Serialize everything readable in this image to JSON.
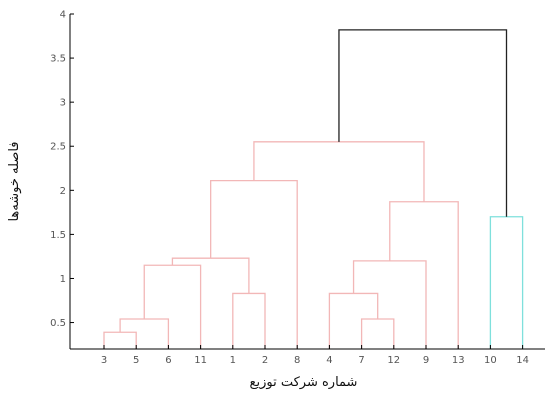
{
  "chart_data": {
    "type": "dendrogram",
    "title": "",
    "xlabel": "شماره شرکت توزیع",
    "ylabel": "فاصله خوشه‌ها",
    "ylim": [
      0.2,
      4
    ],
    "y_ticks": [
      {
        "value": 0.5,
        "label": "0.5"
      },
      {
        "value": 1,
        "label": "1"
      },
      {
        "value": 1.5,
        "label": "1.5"
      },
      {
        "value": 2,
        "label": "2"
      },
      {
        "value": 2.5,
        "label": "2.5"
      },
      {
        "value": 3,
        "label": "3"
      },
      {
        "value": 3.5,
        "label": "3.5"
      },
      {
        "value": 4,
        "label": "4"
      }
    ],
    "leaf_order": [
      "3",
      "5",
      "6",
      "11",
      "1",
      "2",
      "8",
      "4",
      "7",
      "12",
      "9",
      "13",
      "10",
      "14"
    ],
    "merges": [
      {
        "left": "leaf:3",
        "right": "leaf:5",
        "height": 0.39,
        "color": "#f2b7b7"
      },
      {
        "left": "m0",
        "right": "leaf:6",
        "height": 0.54,
        "color": "#f2b7b7"
      },
      {
        "left": "m1",
        "right": "leaf:11",
        "height": 1.15,
        "color": "#f2b7b7"
      },
      {
        "left": "leaf:1",
        "right": "leaf:2",
        "height": 0.83,
        "color": "#f2b7b7"
      },
      {
        "left": "m2",
        "right": "m3",
        "height": 1.23,
        "color": "#f2b7b7"
      },
      {
        "left": "m4",
        "right": "leaf:8",
        "height": 2.11,
        "color": "#f2b7b7"
      },
      {
        "left": "leaf:7",
        "right": "leaf:12",
        "height": 0.54,
        "color": "#f2b7b7"
      },
      {
        "left": "leaf:4",
        "right": "m6",
        "height": 0.83,
        "color": "#f2b7b7"
      },
      {
        "left": "m7",
        "right": "leaf:9",
        "height": 1.2,
        "color": "#f2b7b7"
      },
      {
        "left": "m8",
        "right": "leaf:13",
        "height": 1.87,
        "color": "#f2b7b7"
      },
      {
        "left": "m5",
        "right": "m9",
        "height": 2.55,
        "color": "#f2b7b7"
      },
      {
        "left": "leaf:10",
        "right": "leaf:14",
        "height": 1.7,
        "color": "#7fe0dc"
      },
      {
        "left": "m10",
        "right": "m11",
        "height": 3.82,
        "color": "#222222"
      }
    ],
    "colors": {
      "cluster_dark": "#8b1a2b",
      "cluster_light": "#f2b7b7",
      "cluster_cyan": "#7fe0dc",
      "root": "#222222",
      "axis": "#000000"
    },
    "grid": false,
    "legend": "none"
  }
}
